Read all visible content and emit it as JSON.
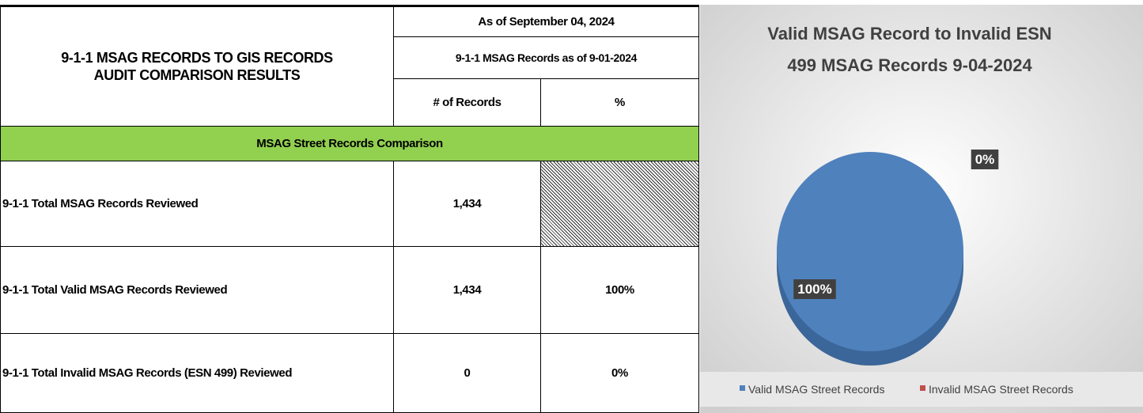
{
  "table": {
    "title": "9-1-1 MSAG RECORDS TO GIS RECORDS AUDIT COMPARISON RESULTS",
    "date_header": "As of September 04, 2024",
    "records_header": "9-1-1 MSAG Records as of 9-01-2024",
    "columns": [
      "# of Records",
      "%"
    ],
    "section": "MSAG Street Records Comparison",
    "rows": [
      {
        "label": "9-1-1 Total MSAG Records Reviewed",
        "count": "1,434"
      },
      {
        "label": "9-1-1 Total Valid MSAG Records Reviewed",
        "count": "1,434",
        "percent": "100%"
      },
      {
        "label": "9-1-1 Total Invalid MSAG Records (ESN 499) Reviewed",
        "count": "0",
        "percent": "0%"
      }
    ]
  },
  "chart_data": {
    "type": "pie",
    "title": "Valid MSAG Record to Invalid ESN",
    "subtitle": "499 MSAG Records 9-04-2024",
    "categories": [
      "Valid MSAG Street Records",
      "Invalid MSAG Street Records"
    ],
    "values": [
      100,
      0
    ],
    "value_labels": [
      "100%",
      "0%"
    ],
    "colors": [
      "#4f81bd",
      "#c0504d"
    ],
    "legend": "bottom"
  }
}
